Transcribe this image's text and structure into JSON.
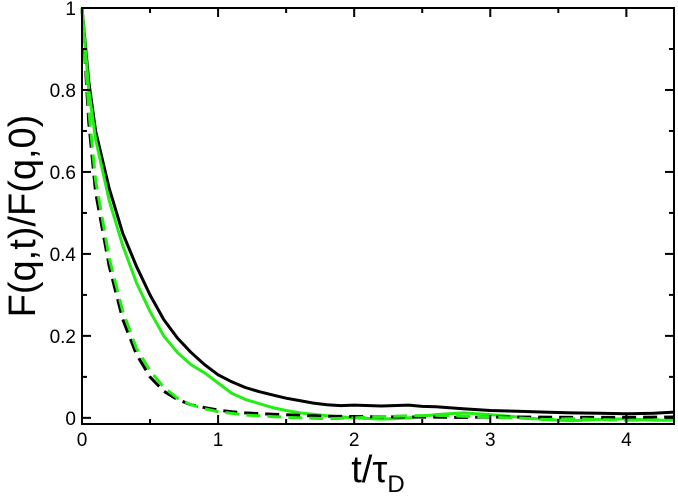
{
  "chart_data": {
    "type": "line",
    "title": "",
    "xlabel": {
      "main": "t/",
      "greek": "τ",
      "sub": "D"
    },
    "ylabel": "F(q,t)/F(q,0)",
    "xlim": [
      0,
      4.35
    ],
    "ylim": [
      -0.015,
      1.0
    ],
    "xticks": [
      0,
      1,
      2,
      3,
      4
    ],
    "yticks": [
      0,
      0.2,
      0.4,
      0.6,
      0.8,
      1
    ],
    "xtick_labels": [
      "0",
      "1",
      "2",
      "3",
      "4"
    ],
    "ytick_labels": [
      "0",
      "0.2",
      "0.4",
      "0.6",
      "0.8",
      "1"
    ],
    "grid": false,
    "legend": "none",
    "series": [
      {
        "color": "#000000",
        "dash": "solid",
        "x": [
          0,
          0.05,
          0.1,
          0.2,
          0.3,
          0.4,
          0.5,
          0.6,
          0.7,
          0.8,
          0.9,
          1.0,
          1.1,
          1.2,
          1.3,
          1.4,
          1.5,
          1.6,
          1.7,
          1.8,
          1.9,
          2.0,
          2.2,
          2.4,
          2.5,
          2.6,
          2.8,
          3.0,
          3.2,
          3.4,
          3.6,
          3.8,
          4.0,
          4.2,
          4.35
        ],
        "y": [
          1.0,
          0.82,
          0.7,
          0.56,
          0.45,
          0.37,
          0.3,
          0.24,
          0.195,
          0.16,
          0.13,
          0.105,
          0.088,
          0.074,
          0.064,
          0.056,
          0.048,
          0.042,
          0.036,
          0.032,
          0.03,
          0.031,
          0.029,
          0.031,
          0.028,
          0.027,
          0.022,
          0.018,
          0.016,
          0.014,
          0.012,
          0.011,
          0.01,
          0.011,
          0.014
        ]
      },
      {
        "color": "#22ee11",
        "dash": "solid",
        "x": [
          0,
          0.05,
          0.1,
          0.2,
          0.3,
          0.4,
          0.5,
          0.6,
          0.7,
          0.8,
          0.9,
          1.0,
          1.1,
          1.2,
          1.3,
          1.4,
          1.5,
          1.6,
          1.8,
          2.0,
          2.2,
          2.4,
          2.6,
          2.8,
          3.0,
          3.2,
          3.4,
          3.6,
          3.8,
          4.0,
          4.2,
          4.35
        ],
        "y": [
          1.0,
          0.8,
          0.68,
          0.53,
          0.42,
          0.33,
          0.26,
          0.2,
          0.16,
          0.13,
          0.11,
          0.085,
          0.06,
          0.045,
          0.035,
          0.025,
          0.018,
          0.012,
          0.005,
          0.0,
          -0.003,
          0.0,
          0.008,
          0.012,
          0.008,
          0.002,
          -0.004,
          -0.007,
          -0.004,
          -0.002,
          -0.006,
          -0.006
        ]
      },
      {
        "color": "#000000",
        "dash": "dashed",
        "x": [
          0,
          0.05,
          0.1,
          0.2,
          0.3,
          0.4,
          0.5,
          0.6,
          0.7,
          0.8,
          0.9,
          1.0,
          1.1,
          1.2,
          1.4,
          1.6,
          1.8,
          2.0,
          2.4,
          2.8,
          3.2,
          3.6,
          4.0,
          4.35
        ],
        "y": [
          1.0,
          0.72,
          0.55,
          0.37,
          0.24,
          0.155,
          0.1,
          0.065,
          0.045,
          0.032,
          0.025,
          0.019,
          0.015,
          0.012,
          0.009,
          0.006,
          0.004,
          0.003,
          0.002,
          0.001,
          0.002,
          0.001,
          0.001,
          0.002
        ]
      },
      {
        "color": "#22ee11",
        "dash": "dashed",
        "x": [
          0,
          0.05,
          0.1,
          0.2,
          0.3,
          0.4,
          0.5,
          0.6,
          0.7,
          0.8,
          0.9,
          1.0,
          1.2,
          1.4,
          1.6,
          1.8,
          2.0,
          2.2,
          2.4,
          2.6,
          2.8,
          3.0,
          3.2,
          3.4,
          3.6,
          3.8,
          4.0,
          4.2,
          4.35
        ],
        "y": [
          1.0,
          0.75,
          0.58,
          0.39,
          0.26,
          0.17,
          0.115,
          0.075,
          0.048,
          0.032,
          0.022,
          0.015,
          0.007,
          0.003,
          0.0,
          -0.002,
          0.0,
          0.003,
          0.005,
          0.006,
          0.004,
          0.001,
          0.0,
          -0.004,
          -0.002,
          -0.004,
          -0.006,
          -0.005,
          -0.003
        ]
      }
    ]
  }
}
